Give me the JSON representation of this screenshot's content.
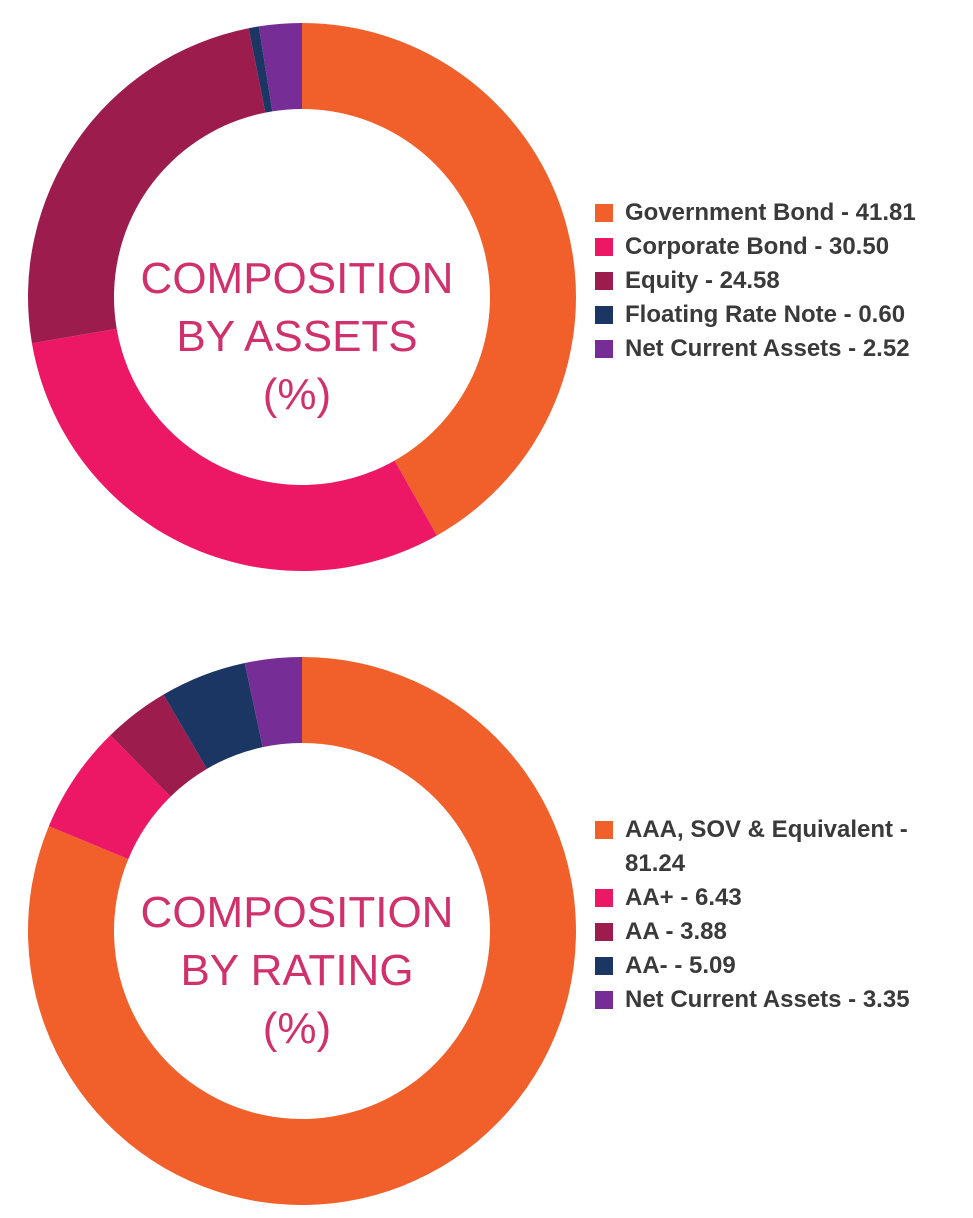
{
  "chart_data": [
    {
      "type": "pie",
      "title_lines": [
        "COMPOSITION",
        "BY ASSETS",
        "(%)"
      ],
      "slices": [
        {
          "label": "Government Bond - 41.81",
          "value": 41.81,
          "color": "#f15f2a"
        },
        {
          "label": "Corporate Bond - 30.50",
          "value": 30.5,
          "color": "#ec1866"
        },
        {
          "label": "Equity - 24.58",
          "value": 24.58,
          "color": "#9c1c4e"
        },
        {
          "label": "Floating Rate Note - 0.60",
          "value": 0.6,
          "color": "#1c3663"
        },
        {
          "label": "Net Current Assets - 2.52",
          "value": 2.52,
          "color": "#772d96"
        }
      ],
      "legend_position": "right"
    },
    {
      "type": "pie",
      "title_lines": [
        "COMPOSITION",
        "BY RATING",
        "(%)"
      ],
      "slices": [
        {
          "label": "AAA, SOV & Equivalent - 81.24",
          "label_lines": [
            "AAA, SOV & Equivalent -",
            "81.24"
          ],
          "value": 81.24,
          "color": "#f15f2a"
        },
        {
          "label": "AA+ - 6.43",
          "value": 6.43,
          "color": "#ec1866"
        },
        {
          "label": "AA - 3.88",
          "value": 3.88,
          "color": "#9c1c4e"
        },
        {
          "label": "AA- - 5.09",
          "value": 5.09,
          "color": "#1c3663"
        },
        {
          "label": "Net Current Assets - 3.35",
          "value": 3.35,
          "color": "#772d96"
        }
      ],
      "legend_position": "right"
    }
  ]
}
